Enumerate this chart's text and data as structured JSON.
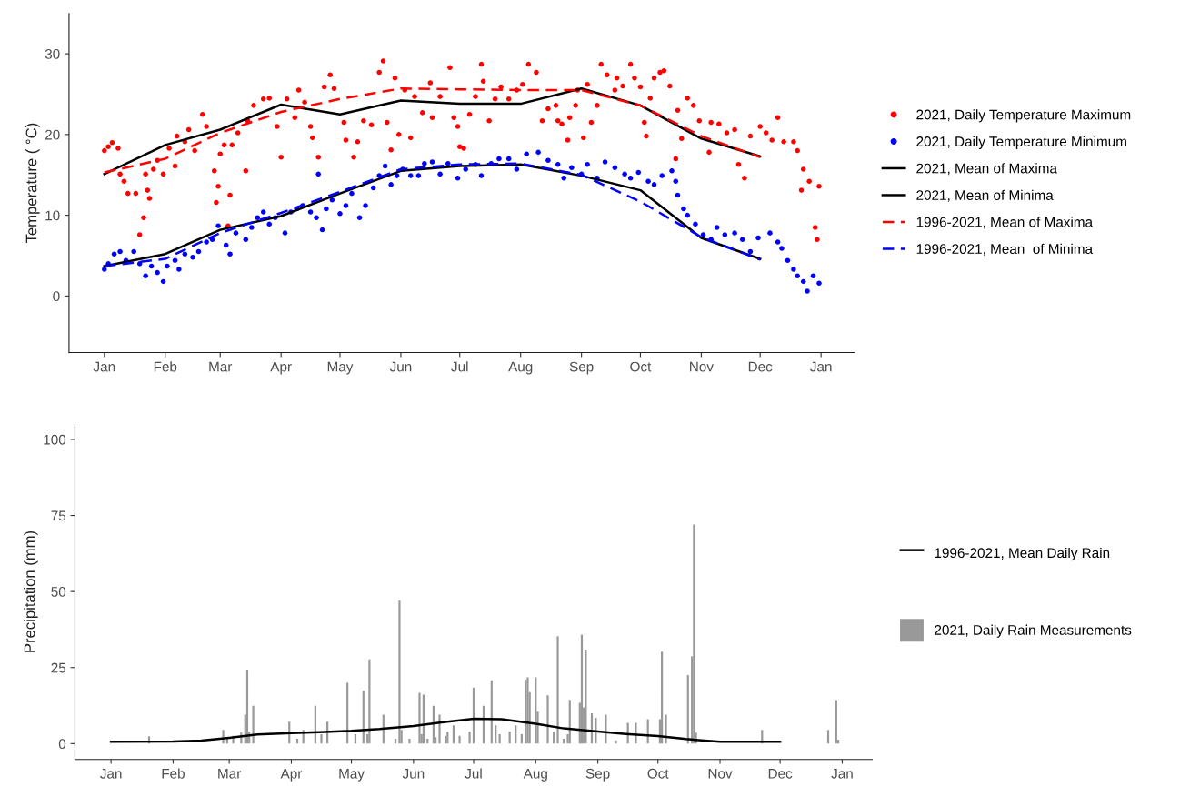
{
  "chart_data": [
    {
      "type": "scatter",
      "ylabel": "Temperature ( °C)",
      "xlim": [
        "2020-12-14",
        "2022-01-18"
      ],
      "ylim": [
        -7,
        35
      ],
      "yticks": [
        0,
        10,
        20,
        30
      ],
      "xticks": [
        {
          "value": "2021-01-01",
          "label": "Jan"
        },
        {
          "value": "2021-02-01",
          "label": "Feb"
        },
        {
          "value": "2021-03-01",
          "label": "Mar"
        },
        {
          "value": "2021-04-01",
          "label": "Apr"
        },
        {
          "value": "2021-05-01",
          "label": "May"
        },
        {
          "value": "2021-06-01",
          "label": "Jun"
        },
        {
          "value": "2021-07-01",
          "label": "Jul"
        },
        {
          "value": "2021-08-01",
          "label": "Aug"
        },
        {
          "value": "2021-09-01",
          "label": "Sep"
        },
        {
          "value": "2021-10-01",
          "label": "Oct"
        },
        {
          "value": "2021-11-01",
          "label": "Nov"
        },
        {
          "value": "2021-12-01",
          "label": "Dec"
        },
        {
          "value": "2022-01-01",
          "label": "Jan"
        }
      ],
      "grid": false,
      "legend": "right",
      "series": [
        {
          "name": "2021, Daily Temperature Maximum",
          "marker": "circle",
          "color": "#ff0000",
          "x": [
            "2021-01-01",
            "2021-01-03",
            "2021-01-05",
            "2021-01-08",
            "2021-01-09",
            "2021-01-11",
            "2021-01-13",
            "2021-01-17",
            "2021-01-19",
            "2021-01-21",
            "2021-01-22",
            "2021-01-23",
            "2021-01-24",
            "2021-01-26",
            "2021-01-28",
            "2021-01-31",
            "2021-02-03",
            "2021-02-06",
            "2021-02-07",
            "2021-02-11",
            "2021-02-13",
            "2021-02-16",
            "2021-02-20",
            "2021-02-22",
            "2021-02-26",
            "2021-02-27",
            "2021-02-28",
            "2021-03-01",
            "2021-03-03",
            "2021-03-05",
            "2021-03-06",
            "2021-03-07",
            "2021-03-10",
            "2021-03-14",
            "2021-03-15",
            "2021-03-18",
            "2021-03-23",
            "2021-03-26",
            "2021-03-30",
            "2021-04-01",
            "2021-04-04",
            "2021-04-08",
            "2021-04-10",
            "2021-04-13",
            "2021-04-16",
            "2021-04-17",
            "2021-04-20",
            "2021-04-23",
            "2021-04-26",
            "2021-04-28",
            "2021-05-03",
            "2021-05-04",
            "2021-05-08",
            "2021-05-10",
            "2021-05-13",
            "2021-05-17",
            "2021-05-21",
            "2021-05-23",
            "2021-05-25",
            "2021-05-27",
            "2021-05-29",
            "2021-05-31",
            "2021-06-03",
            "2021-06-06",
            "2021-06-08",
            "2021-06-12",
            "2021-06-16",
            "2021-06-17",
            "2021-06-21",
            "2021-06-26",
            "2021-06-28",
            "2021-06-30",
            "2021-07-01",
            "2021-07-03",
            "2021-07-06",
            "2021-07-09",
            "2021-07-12",
            "2021-07-13",
            "2021-07-16",
            "2021-07-19",
            "2021-07-22",
            "2021-07-26",
            "2021-07-30",
            "2021-08-02",
            "2021-08-05",
            "2021-08-09",
            "2021-08-12",
            "2021-08-15",
            "2021-08-19",
            "2021-08-20",
            "2021-08-22",
            "2021-08-25",
            "2021-08-26",
            "2021-08-29",
            "2021-08-30",
            "2021-09-02",
            "2021-09-04",
            "2021-09-06",
            "2021-09-09",
            "2021-09-11",
            "2021-09-14",
            "2021-09-18",
            "2021-09-19",
            "2021-09-22",
            "2021-09-26",
            "2021-09-28",
            "2021-10-01",
            "2021-10-03",
            "2021-10-04",
            "2021-10-06",
            "2021-10-08",
            "2021-10-11",
            "2021-10-13",
            "2021-10-16",
            "2021-10-19",
            "2021-10-20",
            "2021-10-22",
            "2021-10-25",
            "2021-10-28",
            "2021-10-31",
            "2021-11-05",
            "2021-11-06",
            "2021-11-10",
            "2021-11-14",
            "2021-11-18",
            "2021-11-20",
            "2021-11-23",
            "2021-11-26",
            "2021-12-01",
            "2021-12-04",
            "2021-12-07",
            "2021-12-10",
            "2021-12-13",
            "2021-12-18",
            "2021-12-20",
            "2021-12-22",
            "2021-12-23",
            "2021-12-26",
            "2021-12-29",
            "2021-12-30",
            "2021-12-31"
          ],
          "values": [
            18.0,
            18.5,
            19.0,
            18.3,
            15.1,
            14.2,
            12.7,
            12.7,
            7.6,
            9.7,
            15.1,
            13.1,
            12.1,
            15.7,
            16.8,
            15.1,
            18.3,
            16.1,
            19.8,
            19.1,
            20.6,
            18.0,
            22.5,
            21.0,
            15.5,
            11.6,
            13.6,
            17.6,
            18.7,
            8.7,
            12.5,
            18.7,
            20.2,
            15.5,
            21.7,
            23.6,
            24.4,
            24.5,
            21.0,
            17.2,
            24.4,
            22.1,
            25.5,
            24.0,
            21.0,
            19.6,
            17.2,
            25.9,
            27.4,
            25.7,
            21.5,
            19.3,
            17.2,
            19.1,
            21.7,
            21.2,
            27.7,
            29.1,
            21.5,
            18.1,
            27.0,
            20.0,
            25.5,
            19.6,
            24.7,
            22.7,
            26.4,
            22.1,
            24.7,
            28.3,
            22.1,
            21.0,
            18.5,
            18.3,
            22.5,
            24.7,
            28.7,
            26.6,
            21.7,
            24.4,
            25.9,
            24.4,
            25.5,
            26.2,
            28.7,
            27.7,
            21.7,
            23.2,
            23.6,
            21.7,
            21.3,
            19.3,
            22.1,
            23.6,
            25.5,
            19.6,
            26.2,
            21.5,
            23.6,
            28.7,
            27.4,
            25.5,
            27.0,
            26.0,
            28.7,
            27.0,
            25.9,
            21.5,
            19.8,
            24.5,
            27.0,
            27.7,
            27.9,
            26.0,
            17.0,
            23.0,
            19.5,
            24.5,
            23.6,
            21.7,
            17.8,
            21.5,
            21.3,
            20.2,
            20.6,
            16.3,
            14.6,
            19.8,
            21.0,
            20.2,
            19.3,
            22.1,
            19.1,
            19.1,
            18.0,
            13.1,
            15.7,
            14.2,
            8.5,
            7.0,
            13.6
          ]
        },
        {
          "name": "2021, Daily Temperature Minimum",
          "marker": "circle",
          "color": "#0000ff",
          "x": [
            "2021-01-01",
            "2021-01-03",
            "2021-01-06",
            "2021-01-09",
            "2021-01-12",
            "2021-01-16",
            "2021-01-19",
            "2021-01-22",
            "2021-01-25",
            "2021-01-28",
            "2021-01-31",
            "2021-02-02",
            "2021-02-06",
            "2021-02-08",
            "2021-02-11",
            "2021-02-15",
            "2021-02-18",
            "2021-02-22",
            "2021-02-25",
            "2021-02-28",
            "2021-03-04",
            "2021-03-06",
            "2021-03-09",
            "2021-03-14",
            "2021-03-17",
            "2021-03-20",
            "2021-03-23",
            "2021-03-26",
            "2021-03-29",
            "2021-04-03",
            "2021-04-06",
            "2021-04-09",
            "2021-04-12",
            "2021-04-16",
            "2021-04-19",
            "2021-04-20",
            "2021-04-22",
            "2021-04-24",
            "2021-04-27",
            "2021-05-01",
            "2021-05-04",
            "2021-05-07",
            "2021-05-11",
            "2021-05-14",
            "2021-05-18",
            "2021-05-21",
            "2021-05-24",
            "2021-05-27",
            "2021-05-30",
            "2021-06-02",
            "2021-06-06",
            "2021-06-10",
            "2021-06-13",
            "2021-06-17",
            "2021-06-21",
            "2021-06-25",
            "2021-06-30",
            "2021-07-04",
            "2021-07-09",
            "2021-07-12",
            "2021-07-17",
            "2021-07-21",
            "2021-07-26",
            "2021-07-30",
            "2021-08-04",
            "2021-08-10",
            "2021-08-15",
            "2021-08-20",
            "2021-08-23",
            "2021-08-27",
            "2021-09-01",
            "2021-09-04",
            "2021-09-09",
            "2021-09-13",
            "2021-09-18",
            "2021-09-23",
            "2021-09-26",
            "2021-09-30",
            "2021-10-05",
            "2021-10-08",
            "2021-10-12",
            "2021-10-17",
            "2021-10-19",
            "2021-10-20",
            "2021-10-23",
            "2021-10-25",
            "2021-10-29",
            "2021-11-02",
            "2021-11-06",
            "2021-11-09",
            "2021-11-13",
            "2021-11-18",
            "2021-11-22",
            "2021-11-26",
            "2021-11-30",
            "2021-12-06",
            "2021-12-10",
            "2021-12-12",
            "2021-12-15",
            "2021-12-18",
            "2021-12-20",
            "2021-12-23",
            "2021-12-25",
            "2021-12-28",
            "2021-12-31"
          ],
          "values": [
            3.3,
            4.0,
            5.2,
            5.5,
            4.4,
            5.5,
            4.0,
            2.5,
            3.7,
            2.9,
            1.8,
            3.7,
            4.4,
            3.3,
            5.2,
            4.8,
            5.5,
            6.7,
            7.0,
            8.7,
            6.3,
            5.2,
            7.8,
            7.0,
            8.5,
            9.7,
            10.4,
            8.9,
            9.7,
            7.8,
            10.4,
            10.8,
            11.2,
            10.4,
            9.7,
            15.1,
            8.2,
            10.8,
            11.9,
            10.2,
            11.2,
            12.7,
            9.7,
            11.2,
            13.4,
            14.9,
            16.1,
            13.8,
            14.9,
            15.7,
            14.9,
            14.9,
            16.4,
            16.6,
            15.1,
            16.4,
            14.6,
            15.7,
            16.3,
            14.9,
            16.4,
            17.0,
            17.0,
            15.7,
            17.6,
            17.8,
            16.8,
            16.3,
            14.6,
            15.9,
            15.1,
            16.3,
            14.6,
            16.6,
            15.9,
            15.1,
            14.6,
            15.3,
            14.2,
            13.8,
            14.9,
            15.5,
            14.2,
            12.5,
            10.8,
            10.0,
            8.9,
            7.6,
            7.0,
            8.5,
            7.6,
            7.8,
            7.0,
            5.5,
            7.2,
            7.8,
            6.7,
            5.9,
            4.4,
            3.3,
            2.5,
            1.8,
            0.6,
            2.5,
            1.6
          ]
        },
        {
          "name": "2021, Mean of Maxima",
          "type": "line",
          "color": "#000000",
          "line_style": "solid",
          "x": [
            "2021-01-01",
            "2021-02-01",
            "2021-03-01",
            "2021-04-01",
            "2021-05-01",
            "2021-06-01",
            "2021-07-01",
            "2021-08-01",
            "2021-09-01",
            "2021-10-01",
            "2021-11-01",
            "2021-12-01"
          ],
          "values": [
            15.1,
            18.7,
            20.6,
            23.7,
            22.5,
            24.2,
            23.8,
            23.8,
            25.7,
            23.6,
            19.5,
            17.3
          ]
        },
        {
          "name": "2021, Mean of Minima",
          "type": "line",
          "color": "#000000",
          "line_style": "solid",
          "x": [
            "2021-01-01",
            "2021-02-01",
            "2021-03-01",
            "2021-04-01",
            "2021-05-01",
            "2021-06-01",
            "2021-07-01",
            "2021-08-01",
            "2021-09-01",
            "2021-10-01",
            "2021-11-01",
            "2021-12-01"
          ],
          "values": [
            3.7,
            5.2,
            8.2,
            9.9,
            12.7,
            15.5,
            16.1,
            16.3,
            14.9,
            13.1,
            7.2,
            4.6
          ]
        },
        {
          "name": "1996-2021, Mean of Maxima",
          "type": "line",
          "color": "#ff0000",
          "line_style": "dashed",
          "x": [
            "2021-01-01",
            "2021-02-01",
            "2021-03-01",
            "2021-04-01",
            "2021-05-01",
            "2021-06-01",
            "2021-07-01",
            "2021-08-01",
            "2021-09-01",
            "2021-10-01",
            "2021-11-01",
            "2021-12-01"
          ],
          "values": [
            15.3,
            17.0,
            20.2,
            22.8,
            24.4,
            25.7,
            25.6,
            25.5,
            25.5,
            23.6,
            19.8,
            17.2
          ]
        },
        {
          "name": "1996-2021, Mean  of Minima",
          "type": "line",
          "color": "#0000ff",
          "line_style": "dashed",
          "x": [
            "2021-01-01",
            "2021-02-01",
            "2021-03-01",
            "2021-04-01",
            "2021-05-01",
            "2021-06-01",
            "2021-07-01",
            "2021-08-01",
            "2021-09-01",
            "2021-10-01",
            "2021-11-01",
            "2021-12-01"
          ],
          "values": [
            3.7,
            4.6,
            7.8,
            10.3,
            12.9,
            15.7,
            16.3,
            16.4,
            15.0,
            11.7,
            7.3,
            4.5
          ]
        }
      ]
    },
    {
      "type": "bar",
      "ylabel": "Precipitation (mm)",
      "xlim": [
        "2020-12-14",
        "2022-01-16"
      ],
      "ylim": [
        -5.2,
        105
      ],
      "yticks": [
        0,
        25,
        50,
        75,
        100
      ],
      "xticks": [
        {
          "value": "2021-01-01",
          "label": "Jan"
        },
        {
          "value": "2021-02-01",
          "label": "Feb"
        },
        {
          "value": "2021-03-01",
          "label": "Mar"
        },
        {
          "value": "2021-04-01",
          "label": "Apr"
        },
        {
          "value": "2021-05-01",
          "label": "May"
        },
        {
          "value": "2021-06-01",
          "label": "Jun"
        },
        {
          "value": "2021-07-01",
          "label": "Jul"
        },
        {
          "value": "2021-08-01",
          "label": "Aug"
        },
        {
          "value": "2021-09-01",
          "label": "Sep"
        },
        {
          "value": "2021-10-01",
          "label": "Oct"
        },
        {
          "value": "2021-11-01",
          "label": "Nov"
        },
        {
          "value": "2021-12-01",
          "label": "Dec"
        },
        {
          "value": "2022-01-01",
          "label": "Jan"
        }
      ],
      "grid": false,
      "legend": "right",
      "series": [
        {
          "name": "1996-2021, Mean Daily Rain",
          "type": "line",
          "color": "#000000",
          "line_style": "solid",
          "x": [
            "2021-01-01",
            "2021-02-01",
            "2021-02-15",
            "2021-03-01",
            "2021-03-15",
            "2021-04-01",
            "2021-04-15",
            "2021-05-01",
            "2021-05-15",
            "2021-06-01",
            "2021-06-15",
            "2021-07-01",
            "2021-07-15",
            "2021-08-01",
            "2021-08-15",
            "2021-09-01",
            "2021-09-15",
            "2021-10-01",
            "2021-10-15",
            "2021-11-01",
            "2021-12-01"
          ],
          "values": [
            0.6,
            0.7,
            1.0,
            1.9,
            3.0,
            3.5,
            3.8,
            4.2,
            4.8,
            5.8,
            7.0,
            8.2,
            8.0,
            6.5,
            5.0,
            4.0,
            3.2,
            2.5,
            1.5,
            0.6,
            0.6
          ]
        },
        {
          "name": "2021, Daily Rain Measurements",
          "color": "#999999",
          "x": [
            "2021-01-20",
            "2021-02-26",
            "2021-02-28",
            "2021-03-03",
            "2021-03-07",
            "2021-03-09",
            "2021-03-10",
            "2021-03-11",
            "2021-03-13",
            "2021-03-31",
            "2021-04-04",
            "2021-04-07",
            "2021-04-13",
            "2021-04-16",
            "2021-04-19",
            "2021-04-29",
            "2021-05-03",
            "2021-05-07",
            "2021-05-09",
            "2021-05-10",
            "2021-05-17",
            "2021-05-23",
            "2021-05-25",
            "2021-05-26",
            "2021-05-30",
            "2021-06-04",
            "2021-06-05",
            "2021-06-06",
            "2021-06-08",
            "2021-06-11",
            "2021-06-12",
            "2021-06-14",
            "2021-06-17",
            "2021-06-18",
            "2021-06-21",
            "2021-06-24",
            "2021-06-29",
            "2021-07-01",
            "2021-07-06",
            "2021-07-10",
            "2021-07-12",
            "2021-07-14",
            "2021-07-19",
            "2021-07-22",
            "2021-07-25",
            "2021-07-27",
            "2021-07-28",
            "2021-07-29",
            "2021-08-01",
            "2021-08-02",
            "2021-08-07",
            "2021-08-10",
            "2021-08-12",
            "2021-08-15",
            "2021-08-17",
            "2021-08-18",
            "2021-08-23",
            "2021-08-24",
            "2021-08-25",
            "2021-08-26",
            "2021-08-29",
            "2021-08-31",
            "2021-09-05",
            "2021-09-10",
            "2021-09-16",
            "2021-09-20",
            "2021-09-26",
            "2021-10-02",
            "2021-10-03",
            "2021-10-05",
            "2021-10-16",
            "2021-10-18",
            "2021-10-19",
            "2021-10-20",
            "2021-11-22",
            "2021-12-25",
            "2021-12-29",
            "2021-12-30"
          ],
          "values": [
            2.4,
            4.5,
            2.1,
            2.6,
            3.6,
            9.5,
            24.3,
            4.0,
            12.4,
            7.2,
            1.6,
            4.5,
            12.4,
            3.1,
            7.2,
            20.0,
            3.1,
            17.4,
            3.1,
            27.7,
            9.5,
            1.6,
            47.0,
            4.5,
            1.6,
            16.7,
            3.1,
            16.1,
            1.6,
            12.4,
            2.1,
            9.5,
            2.6,
            4.0,
            6.0,
            2.6,
            4.0,
            18.4,
            12.4,
            20.8,
            6.0,
            3.1,
            4.0,
            6.0,
            3.1,
            21.0,
            21.8,
            16.9,
            21.8,
            10.5,
            15.9,
            4.0,
            35.3,
            1.6,
            3.1,
            14.4,
            13.4,
            35.8,
            11.9,
            30.9,
            10.0,
            8.5,
            9.5,
            1.1,
            6.8,
            6.8,
            8.0,
            8.0,
            30.2,
            9.5,
            22.5,
            28.7,
            72.0,
            3.6,
            4.5,
            4.5,
            14.3,
            1.3
          ]
        }
      ]
    }
  ]
}
